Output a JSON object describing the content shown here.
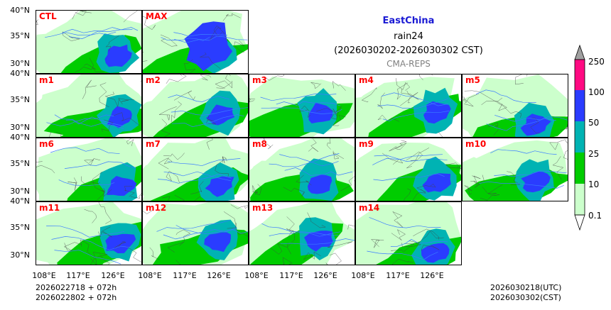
{
  "header": {
    "region": "EastChina",
    "variable": "rain24",
    "period": "(2026030202-2026030302 CST)",
    "system": "CMA-REPS"
  },
  "panels": [
    {
      "label": "CTL"
    },
    {
      "label": "MAX"
    },
    {
      "label": "m1"
    },
    {
      "label": "m2"
    },
    {
      "label": "m3"
    },
    {
      "label": "m4"
    },
    {
      "label": "m5"
    },
    {
      "label": "m6"
    },
    {
      "label": "m7"
    },
    {
      "label": "m8"
    },
    {
      "label": "m9"
    },
    {
      "label": "m10"
    },
    {
      "label": "m11"
    },
    {
      "label": "m12"
    },
    {
      "label": "m13"
    },
    {
      "label": "m14"
    }
  ],
  "axes": {
    "lat_ticks": [
      "40°N",
      "35°N",
      "30°N"
    ],
    "lon_ticks": [
      "108°E",
      "117°E",
      "126°E"
    ]
  },
  "colorbar": {
    "levels": [
      "0.1",
      "10",
      "25",
      "50",
      "100",
      "250"
    ],
    "colors": [
      "#ccffcc",
      "#00cc00",
      "#00b3b3",
      "#2a3cff",
      "#ff0a82",
      "#a0a0a0"
    ]
  },
  "footer": {
    "init_utc_line": "2026022718  +  072h",
    "init_cst_line": "2026022802  +  072h",
    "valid_utc": "2026030218(UTC)",
    "valid_cst": "2026030302(CST)"
  }
}
